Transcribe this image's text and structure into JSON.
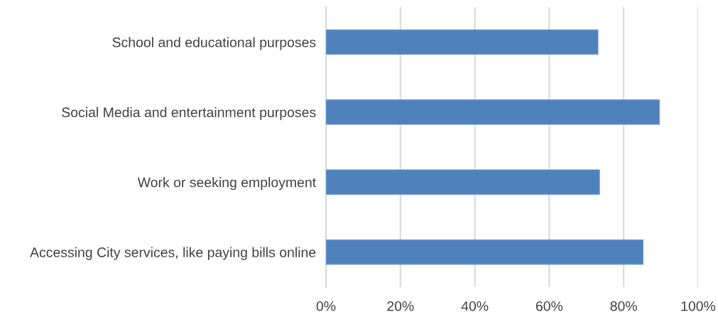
{
  "chart_data": {
    "type": "bar",
    "orientation": "horizontal",
    "categories": [
      "School and educational purposes",
      "Social Media and entertainment purposes",
      "Work or seeking employment",
      "Accessing City services, like paying bills online"
    ],
    "values": [
      73.1,
      89.6,
      73.5,
      85.2
    ],
    "color": "#4f81bd",
    "xlim": [
      0,
      100
    ],
    "xticks": [
      {
        "value": 0,
        "label": "0%"
      },
      {
        "value": 20,
        "label": "20%"
      },
      {
        "value": 40,
        "label": "40%"
      },
      {
        "value": 60,
        "label": "60%"
      },
      {
        "value": 80,
        "label": "80%"
      },
      {
        "value": 100,
        "label": "100%"
      }
    ],
    "grid": "x",
    "legend": false
  }
}
